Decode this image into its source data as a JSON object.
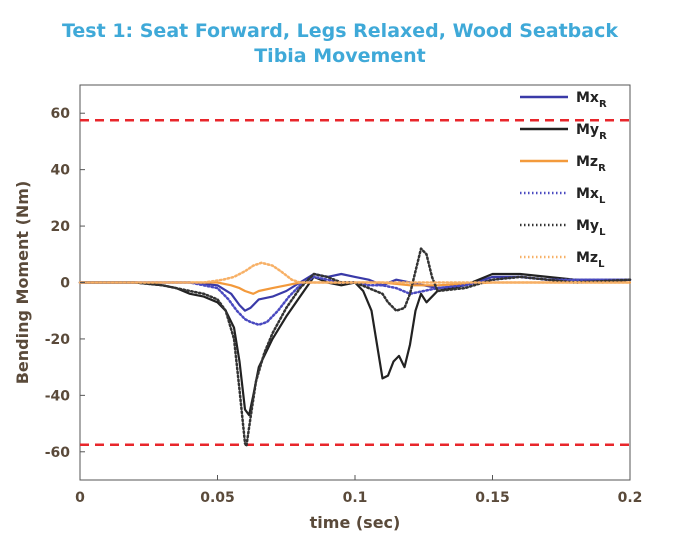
{
  "title_line1": "Test 1: Seat Forward, Legs Relaxed, Wood Seatback",
  "title_line2": "Tibia Movement",
  "chart_data": {
    "type": "line",
    "xlabel": "time (sec)",
    "ylabel": "Bending Moment (Nm)",
    "xlim": [
      0,
      0.2
    ],
    "ylim": [
      -70,
      70
    ],
    "xticks": [
      0,
      0.05,
      0.1,
      0.15,
      0.2
    ],
    "xtick_labels": [
      "0",
      "0.05",
      "0.1",
      "0.15",
      "0.2"
    ],
    "yticks": [
      -60,
      -40,
      -20,
      0,
      20,
      40,
      60
    ],
    "ytick_labels": [
      "-60",
      "-40",
      "-20",
      "0",
      "20",
      "40",
      "60"
    ],
    "grid": false,
    "legend_position": "right",
    "reference_lines": [
      {
        "y": 57.5,
        "color": "#e8262b",
        "style": "dashed"
      },
      {
        "y": -57.5,
        "color": "#e8262b",
        "style": "dashed"
      }
    ],
    "series": [
      {
        "name": "Mx",
        "sub": "R",
        "color": "#3a3aa8",
        "style": "solid",
        "x": [
          0,
          0.02,
          0.04,
          0.05,
          0.055,
          0.058,
          0.06,
          0.062,
          0.065,
          0.07,
          0.075,
          0.08,
          0.085,
          0.09,
          0.095,
          0.1,
          0.105,
          0.11,
          0.115,
          0.12,
          0.125,
          0.13,
          0.14,
          0.15,
          0.16,
          0.17,
          0.18,
          0.19,
          0.2
        ],
        "y": [
          0,
          0,
          0,
          -1,
          -4,
          -8,
          -10,
          -9,
          -6,
          -5,
          -3,
          0,
          3,
          2,
          3,
          2,
          1,
          -1,
          1,
          0,
          -1,
          -2,
          -1,
          2,
          2,
          1,
          1,
          1,
          1
        ]
      },
      {
        "name": "My",
        "sub": "R",
        "color": "#222222",
        "style": "solid",
        "x": [
          0,
          0.02,
          0.03,
          0.035,
          0.04,
          0.045,
          0.05,
          0.053,
          0.056,
          0.058,
          0.06,
          0.0615,
          0.063,
          0.065,
          0.07,
          0.075,
          0.08,
          0.085,
          0.09,
          0.095,
          0.1,
          0.103,
          0.106,
          0.108,
          0.11,
          0.112,
          0.114,
          0.116,
          0.118,
          0.12,
          0.122,
          0.124,
          0.126,
          0.13,
          0.14,
          0.15,
          0.16,
          0.17,
          0.18,
          0.19,
          0.2
        ],
        "y": [
          0,
          0,
          -1,
          -2,
          -4,
          -5,
          -7,
          -10,
          -16,
          -28,
          -45,
          -47,
          -40,
          -30,
          -20,
          -12,
          -5,
          2,
          0,
          -1,
          0,
          -3,
          -10,
          -22,
          -34,
          -33,
          -28,
          -26,
          -30,
          -22,
          -10,
          -4,
          -7,
          -3,
          -1,
          3,
          3,
          2,
          1,
          0,
          1
        ]
      },
      {
        "name": "Mz",
        "sub": "R",
        "color": "#f39a3c",
        "style": "solid",
        "x": [
          0,
          0.02,
          0.04,
          0.05,
          0.055,
          0.058,
          0.06,
          0.063,
          0.065,
          0.07,
          0.075,
          0.08,
          0.09,
          0.1,
          0.11,
          0.12,
          0.13,
          0.15,
          0.17,
          0.2
        ],
        "y": [
          0,
          0,
          0,
          0,
          -1,
          -2,
          -3,
          -4,
          -3,
          -2,
          -1,
          0,
          0,
          0,
          0,
          -1,
          -1,
          0,
          0,
          0
        ]
      },
      {
        "name": "Mx",
        "sub": "L",
        "color": "#4a4ac0",
        "style": "dotted",
        "x": [
          0,
          0.02,
          0.04,
          0.05,
          0.054,
          0.057,
          0.06,
          0.062,
          0.065,
          0.068,
          0.072,
          0.076,
          0.08,
          0.085,
          0.09,
          0.095,
          0.1,
          0.105,
          0.11,
          0.115,
          0.12,
          0.125,
          0.13,
          0.14,
          0.15,
          0.16,
          0.17,
          0.18,
          0.19,
          0.2
        ],
        "y": [
          0,
          0,
          0,
          -2,
          -6,
          -10,
          -13,
          -14,
          -15,
          -14,
          -10,
          -5,
          -1,
          2,
          1,
          0,
          0,
          -1,
          -1,
          -2,
          -4,
          -3,
          -2,
          -1,
          1,
          2,
          1,
          1,
          1,
          1
        ]
      },
      {
        "name": "My",
        "sub": "L",
        "color": "#333333",
        "style": "dotted",
        "x": [
          0,
          0.02,
          0.03,
          0.04,
          0.045,
          0.05,
          0.053,
          0.056,
          0.058,
          0.06,
          0.0605,
          0.062,
          0.064,
          0.067,
          0.07,
          0.075,
          0.08,
          0.085,
          0.09,
          0.095,
          0.1,
          0.105,
          0.11,
          0.112,
          0.115,
          0.118,
          0.12,
          0.122,
          0.124,
          0.126,
          0.128,
          0.13,
          0.14,
          0.15,
          0.16,
          0.17,
          0.18,
          0.2
        ],
        "y": [
          0,
          0,
          -1,
          -3,
          -4,
          -6,
          -10,
          -20,
          -38,
          -57,
          -58,
          -48,
          -35,
          -25,
          -18,
          -9,
          -2,
          3,
          2,
          0,
          0,
          -2,
          -4,
          -7,
          -10,
          -9,
          -4,
          4,
          12,
          10,
          2,
          -3,
          -2,
          1,
          2,
          1,
          0,
          1
        ]
      },
      {
        "name": "Mz",
        "sub": "L",
        "color": "#f7b066",
        "style": "dotted",
        "x": [
          0,
          0.03,
          0.045,
          0.052,
          0.056,
          0.06,
          0.063,
          0.066,
          0.07,
          0.073,
          0.077,
          0.08,
          0.09,
          0.1,
          0.12,
          0.15,
          0.2
        ],
        "y": [
          0,
          0,
          0,
          1,
          2,
          4,
          6,
          7,
          6,
          4,
          1,
          0,
          0,
          0,
          0,
          0,
          0
        ]
      }
    ]
  }
}
